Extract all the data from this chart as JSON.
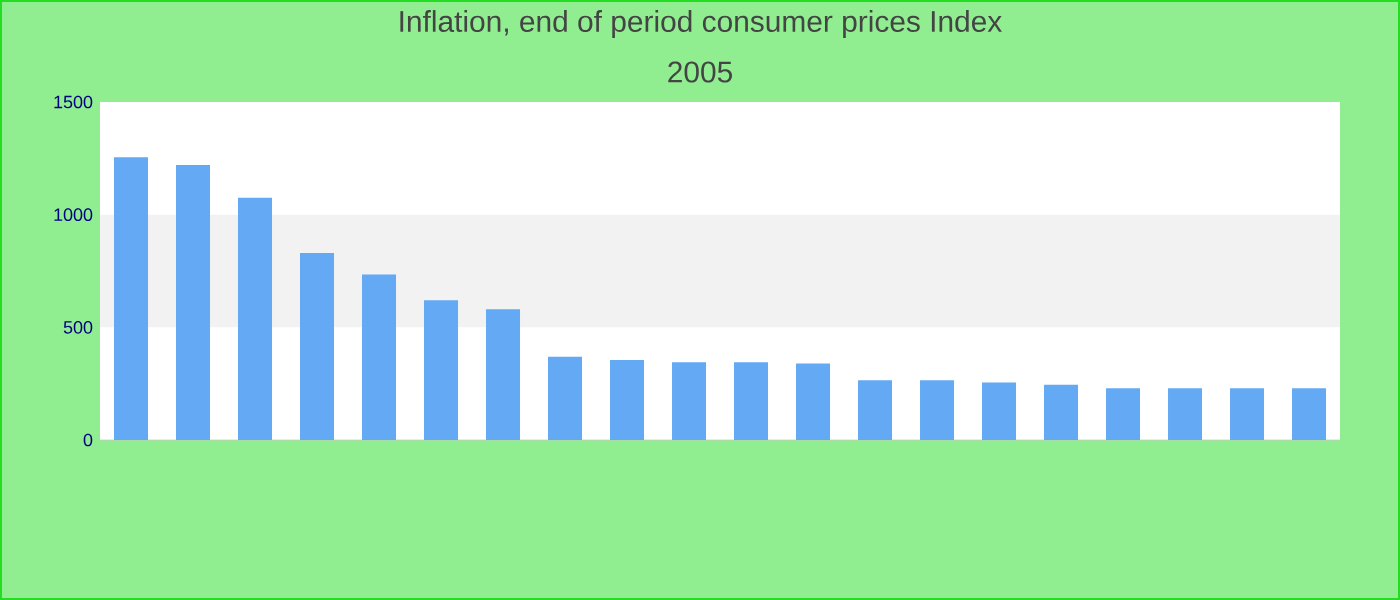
{
  "chart_data": {
    "type": "bar",
    "title": "Inflation, end of period consumer prices  Index",
    "subtitle": "2005",
    "categories": [
      null,
      null,
      null,
      null,
      null,
      null,
      null,
      null,
      null,
      null,
      null,
      null,
      null,
      null,
      null,
      null,
      null,
      null,
      null,
      null
    ],
    "values": [
      1255,
      1220,
      1075,
      830,
      735,
      620,
      580,
      370,
      355,
      345,
      345,
      340,
      265,
      265,
      255,
      245,
      230,
      230,
      230,
      230
    ],
    "color": "#63a9f4",
    "ylim": [
      0,
      1500
    ],
    "yticks": [
      0,
      500,
      1000,
      1500
    ],
    "bands": [
      {
        "axis": "y",
        "from": 500,
        "to": 1000,
        "color": "#f2f2f2"
      }
    ]
  }
}
